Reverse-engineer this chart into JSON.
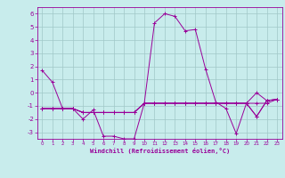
{
  "background_color": "#c8ecec",
  "grid_color": "#a0c8c8",
  "line_color": "#990099",
  "marker_color": "#990099",
  "xlabel": "Windchill (Refroidissement éolien,°C)",
  "xlabel_color": "#990099",
  "tick_color": "#990099",
  "xlim": [
    -0.5,
    23.5
  ],
  "ylim": [
    -3.5,
    6.5
  ],
  "yticks": [
    -3,
    -2,
    -1,
    0,
    1,
    2,
    3,
    4,
    5,
    6
  ],
  "xtick_labels": [
    "0",
    "1",
    "2",
    "3",
    "4",
    "5",
    "6",
    "7",
    "8",
    "9",
    "10",
    "11",
    "12",
    "13",
    "14",
    "15",
    "16",
    "17",
    "18",
    "19",
    "20",
    "21",
    "22",
    "23"
  ],
  "series": [
    [
      1.7,
      0.8,
      -1.2,
      -1.2,
      -2.0,
      -1.3,
      -3.3,
      -3.3,
      -3.5,
      -3.5,
      -0.8,
      5.3,
      6.0,
      5.8,
      4.7,
      4.8,
      1.8,
      -0.7,
      -1.2,
      -3.1,
      -0.8,
      -1.8,
      -0.6,
      -0.5
    ],
    [
      -1.2,
      -1.2,
      -1.2,
      -1.2,
      -1.5,
      -1.5,
      -1.5,
      -1.5,
      -1.5,
      -1.5,
      -0.8,
      -0.8,
      -0.8,
      -0.8,
      -0.8,
      -0.8,
      -0.8,
      -0.8,
      -0.8,
      -0.8,
      -0.8,
      -1.8,
      -0.6,
      -0.5
    ],
    [
      -1.2,
      -1.2,
      -1.2,
      -1.2,
      -1.5,
      -1.5,
      -1.5,
      -1.5,
      -1.5,
      -1.5,
      -0.8,
      -0.8,
      -0.8,
      -0.8,
      -0.8,
      -0.8,
      -0.8,
      -0.8,
      -0.8,
      -0.8,
      -0.8,
      0.0,
      -0.6,
      -0.5
    ],
    [
      -1.2,
      -1.2,
      -1.2,
      -1.2,
      -1.5,
      -1.5,
      -1.5,
      -1.5,
      -1.5,
      -1.5,
      -0.8,
      -0.8,
      -0.8,
      -0.8,
      -0.8,
      -0.8,
      -0.8,
      -0.8,
      -0.8,
      -0.8,
      -0.8,
      -0.8,
      -0.8,
      -0.5
    ]
  ]
}
